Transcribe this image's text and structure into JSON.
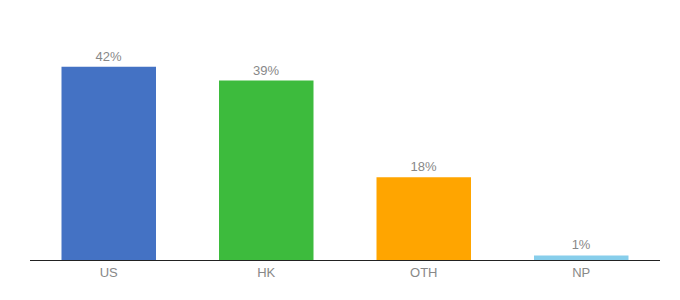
{
  "chart_data": {
    "type": "bar",
    "categories": [
      "US",
      "HK",
      "OTH",
      "NP"
    ],
    "values": [
      42,
      39,
      18,
      1
    ],
    "value_labels": [
      "42%",
      "39%",
      "18%",
      "1%"
    ],
    "data_labels": true,
    "colors": [
      "#4472C4",
      "#3DBB3D",
      "#FFA500",
      "#87CEEB"
    ],
    "ylim": [
      0,
      50
    ],
    "grid": false,
    "tick_labels": "x"
  }
}
